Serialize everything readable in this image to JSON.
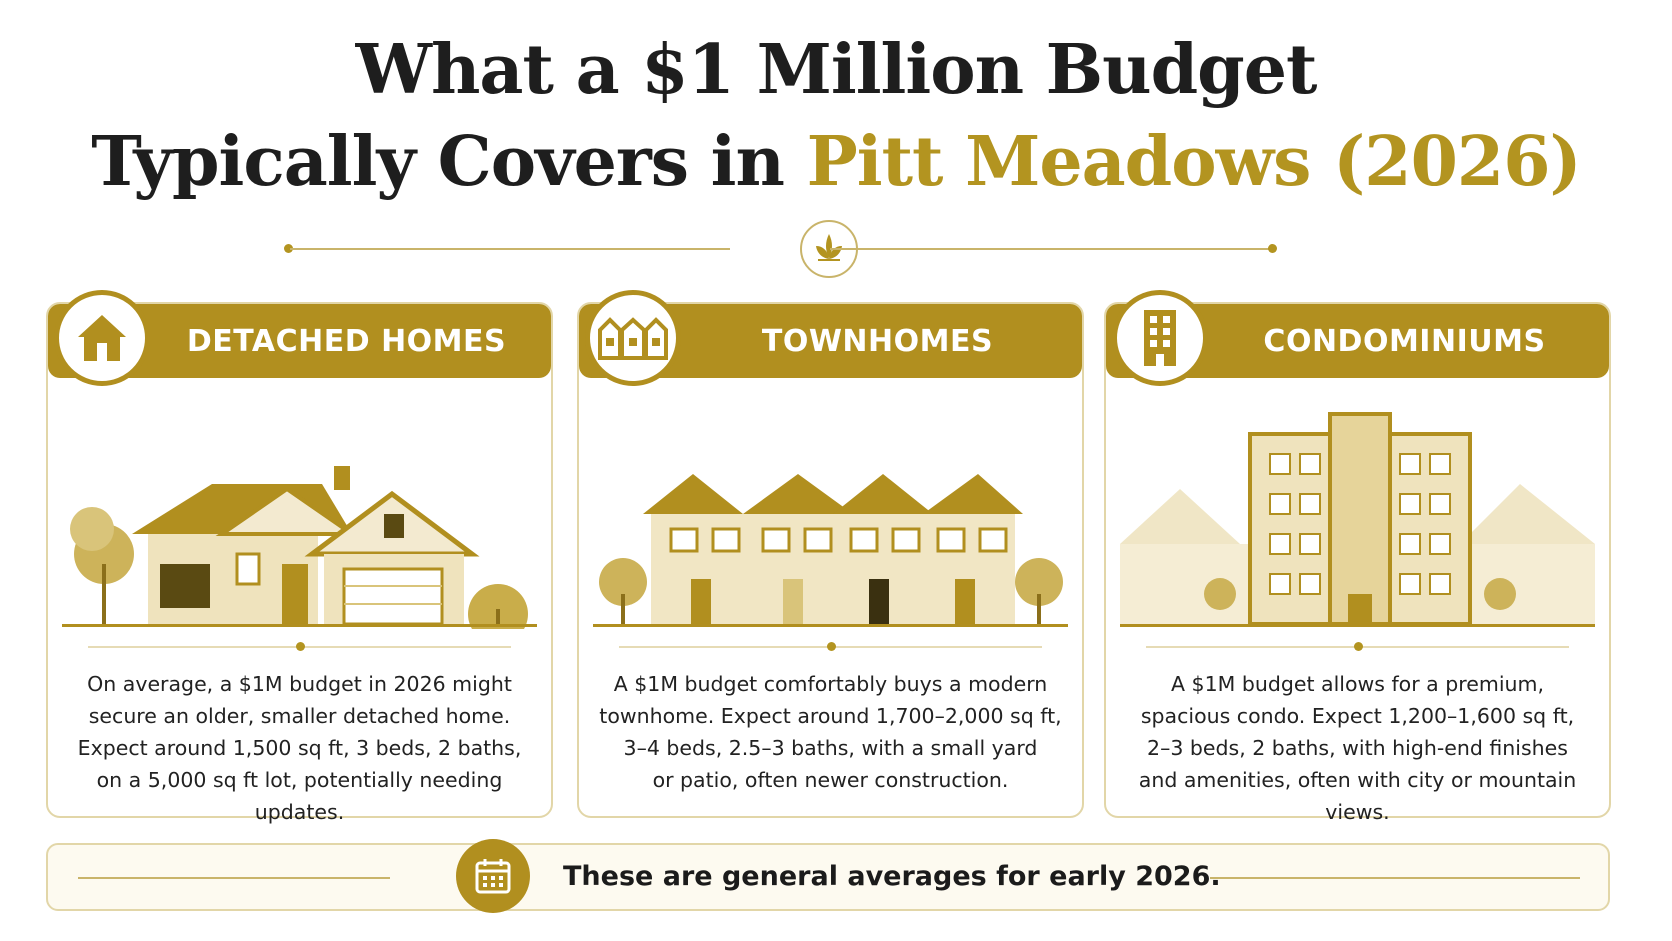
{
  "title": {
    "line1": "What a $1 Million Budget",
    "line2_prefix": "Typically Covers in ",
    "line2_accent": "Pitt Meadows (2026)"
  },
  "colors": {
    "accent": "#b18f1f",
    "accent_light": "#e2d6a8",
    "text": "#1e1e1e"
  },
  "cards": [
    {
      "icon": "house-icon",
      "title": "DETACHED HOMES",
      "lines": [
        "On average, a $1M budget in 2026 might",
        "secure an older, smaller detached home.",
        "Expect around 1,500 sq ft, 3 beds, 2 baths,",
        "on a 5,000 sq ft lot, potentially needing updates."
      ]
    },
    {
      "icon": "townhouse-icon",
      "title": "TOWNHOMES",
      "lines": [
        "A $1M budget comfortably buys a modern",
        "townhome. Expect around 1,700–2,000 sq ft,",
        "3–4 beds, 2.5–3 baths, with a small yard",
        "or patio, often newer construction."
      ]
    },
    {
      "icon": "building-icon",
      "title": "CONDOMINIUMS",
      "lines": [
        "A $1M budget allows for a premium,",
        "spacious condo. Expect 1,200–1,600 sq ft,",
        "2–3 beds, 2 baths, with high-end finishes",
        "and amenities, often with city or mountain views."
      ]
    }
  ],
  "footer": {
    "icon": "calendar-icon",
    "text": "These are general averages for early 2026."
  }
}
